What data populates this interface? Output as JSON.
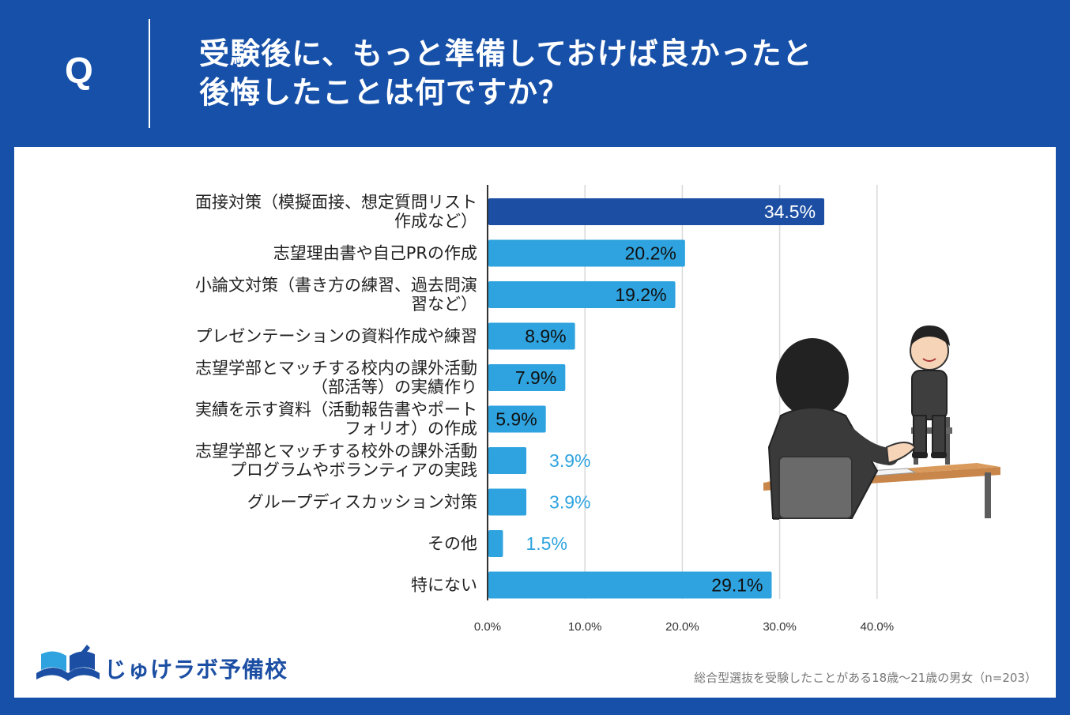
{
  "header": {
    "q_label": "Q",
    "title_line1": "受験後に、もっと準備しておけば良かったと",
    "title_line2": "後悔したことは何ですか？"
  },
  "brand": {
    "name": "じゅけラボ予備校"
  },
  "footnote": "総合型選抜を受験したことがある18歳〜21歳の男女（n=203）",
  "colors": {
    "header_bg": "#1750a8",
    "bar_highlight": "#1c4fa3",
    "bar_default": "#2ea3df",
    "label_outside": "#2ea3df"
  },
  "chart_data": {
    "type": "bar",
    "orientation": "horizontal",
    "title": "受験後に、もっと準備しておけば良かったと後悔したことは何ですか？",
    "categories": [
      [
        "面接対策（模擬面接、想定質問リスト",
        "作成など）"
      ],
      [
        "志望理由書や自己PRの作成"
      ],
      [
        "小論文対策（書き方の練習、過去問演",
        "習など）"
      ],
      [
        "プレゼンテーションの資料作成や練習"
      ],
      [
        "志望学部とマッチする校内の課外活動",
        "（部活等）の実績作り"
      ],
      [
        "実績を示す資料（活動報告書やポート",
        "フォリオ）の作成"
      ],
      [
        "志望学部とマッチする校外の課外活動",
        "プログラムやボランティアの実践"
      ],
      [
        "グループディスカッション対策"
      ],
      [
        "その他"
      ],
      [
        "特にない"
      ]
    ],
    "values": [
      34.5,
      20.2,
      19.2,
      8.9,
      7.9,
      5.9,
      3.9,
      3.9,
      1.5,
      29.1
    ],
    "value_labels": [
      "34.5%",
      "20.2%",
      "19.2%",
      "8.9%",
      "7.9%",
      "5.9%",
      "3.9%",
      "3.9%",
      "1.5%",
      "29.1%"
    ],
    "highlight_index": 0,
    "xlim": [
      0,
      40
    ],
    "xticks": [
      0,
      10,
      20,
      30,
      40
    ],
    "xtick_labels": [
      "0.0%",
      "10.0%",
      "20.0%",
      "30.0%",
      "40.0%"
    ],
    "grid": true,
    "xlabel": "",
    "ylabel": ""
  }
}
